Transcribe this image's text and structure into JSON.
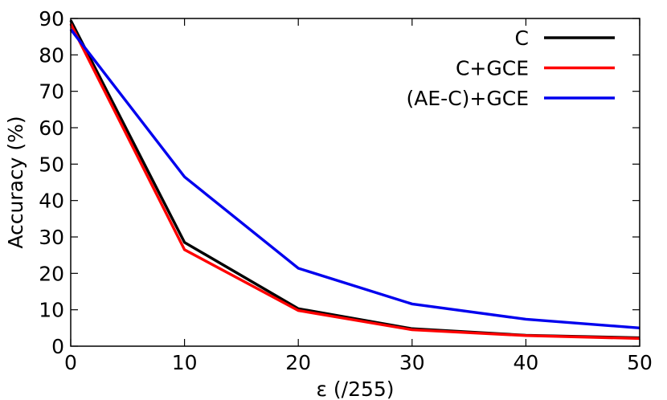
{
  "chart_data": {
    "type": "line",
    "title": "",
    "xlabel": "ε (/255)",
    "ylabel": "Accuracy (%)",
    "xlim": [
      0,
      50
    ],
    "ylim": [
      0,
      90
    ],
    "xticks": [
      0,
      10,
      20,
      30,
      40,
      50
    ],
    "yticks": [
      0,
      10,
      20,
      30,
      40,
      50,
      60,
      70,
      80,
      90
    ],
    "grid": false,
    "legend_position": "top-right",
    "x": [
      0,
      10,
      20,
      30,
      40,
      50
    ],
    "series": [
      {
        "name": "C",
        "color": "#000000",
        "values": [
          89.5,
          28.5,
          10.3,
          4.8,
          3.0,
          2.3
        ]
      },
      {
        "name": "C+GCE",
        "color": "#ff0000",
        "values": [
          88.5,
          26.5,
          9.8,
          4.5,
          2.9,
          2.1
        ]
      },
      {
        "name": "(AE-C)+GCE",
        "color": "#0000ee",
        "values": [
          87.0,
          46.5,
          21.4,
          11.6,
          7.4,
          5.0
        ]
      }
    ]
  }
}
